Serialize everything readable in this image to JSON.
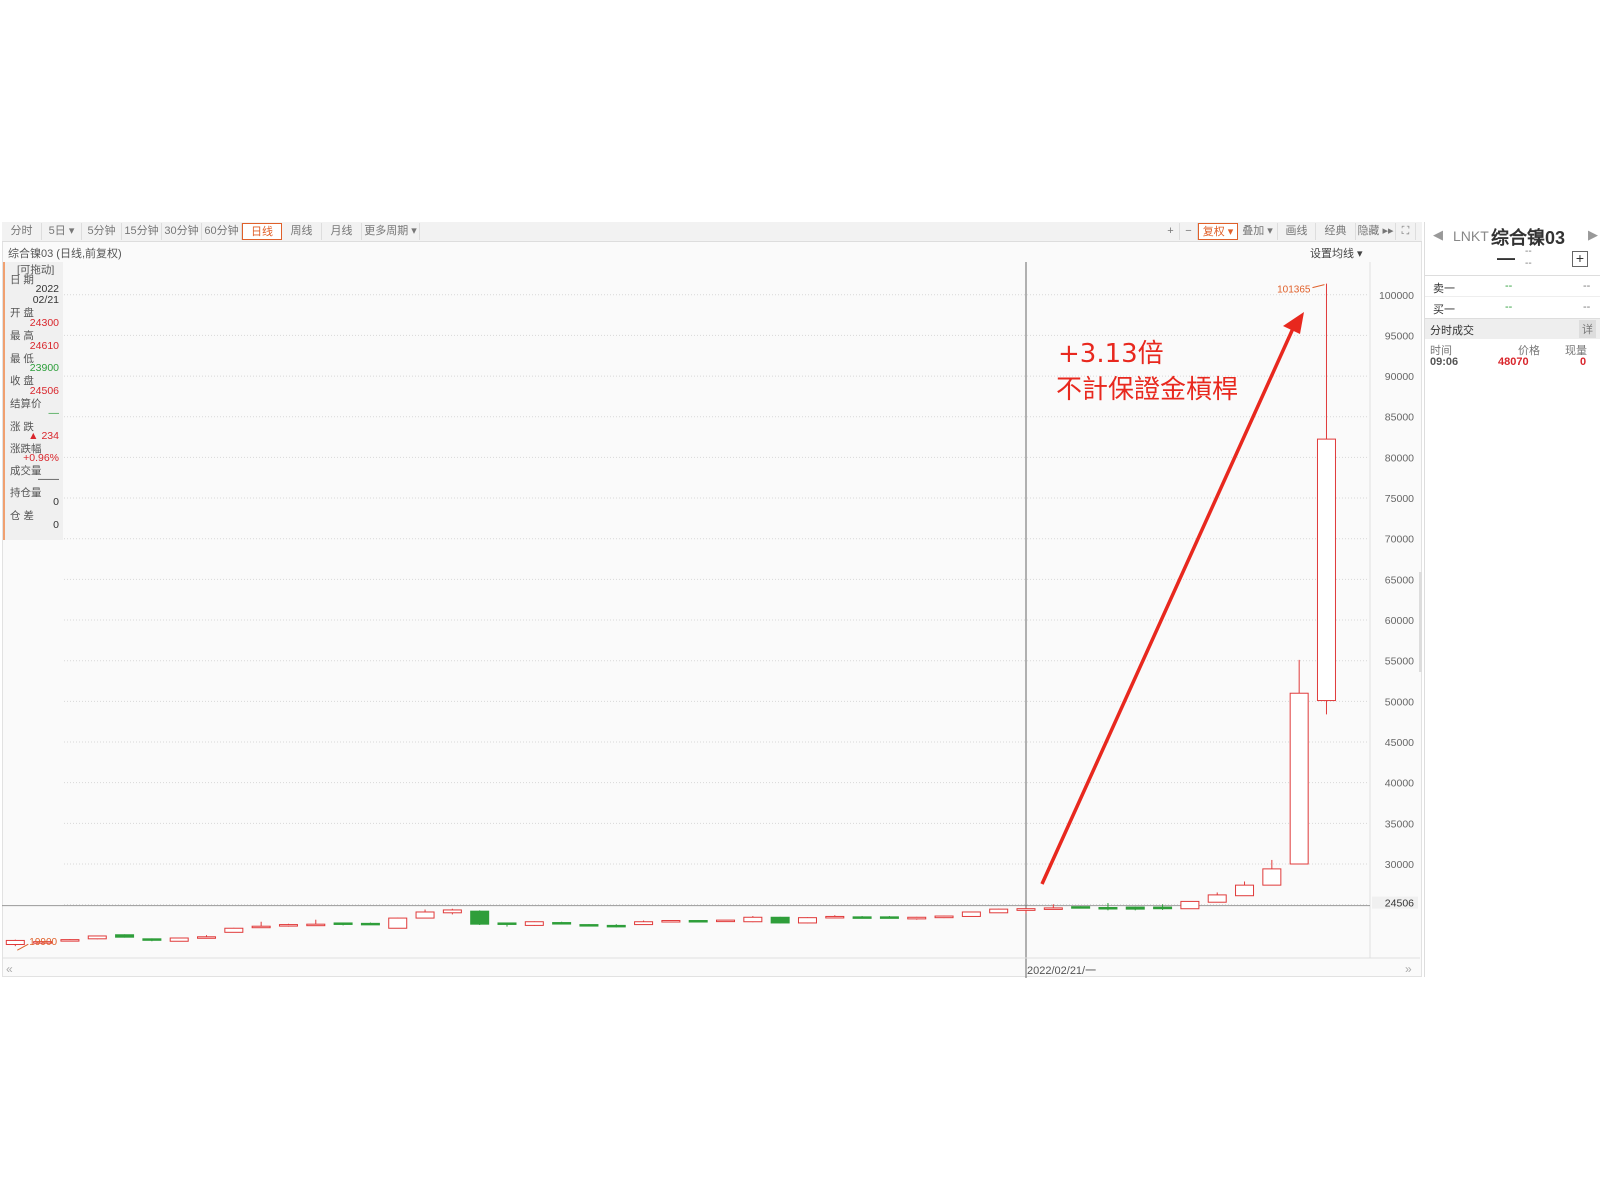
{
  "toolbar": {
    "periods": [
      "分时",
      "5日 ▾",
      "5分钟",
      "15分钟",
      "30分钟",
      "60分钟",
      "日线",
      "周线",
      "月线",
      "更多周期 ▾"
    ],
    "active_period": "日线",
    "tools": [
      "+",
      "−",
      "复权 ▾",
      "叠加 ▾",
      "画线",
      "经典",
      "隐藏 ▸▸"
    ],
    "active_tool": "复权 ▾",
    "fullscreen_icon": "expand-icon"
  },
  "chart_header": {
    "subtitle": "综合镍03 (日线,前复权)",
    "ma_setting": "设置均线 ▾"
  },
  "info_panel": {
    "drag_hint": "[可拖动]",
    "date_label": "日 期",
    "date_year": "2022",
    "date_md": "02/21",
    "open_label": "开 盘",
    "open": "24300",
    "high_label": "最 高",
    "high": "24610",
    "low_label": "最 低",
    "low": "23900",
    "close_label": "收 盘",
    "close": "24506",
    "settle_label": "结算价",
    "settle": "—",
    "change_label": "涨 跌",
    "change": "▲ 234",
    "pct_label": "涨跌幅",
    "pct": "+0.96%",
    "volume_label": "成交量",
    "volume": "——",
    "oi_label": "持仓量",
    "oi": "0",
    "oi_diff_label": "仓 差",
    "oi_diff": "0"
  },
  "annotation": {
    "line1": "+3.13倍",
    "line2": "不計保證金槓桿",
    "color": "#e8281e"
  },
  "crosshair_date": "2022/02/21/一",
  "right_panel": {
    "code": "LNKT",
    "name": "综合镍03",
    "price": "—",
    "chg1": "--",
    "chg2": "--",
    "sell1_label": "卖一",
    "sell1_price": "--",
    "sell1_vol": "--",
    "buy1_label": "买一",
    "buy1_price": "--",
    "buy1_vol": "--",
    "ticks_title": "分时成交",
    "detail_btn": "详",
    "cols": [
      "时间",
      "价格",
      "现量"
    ],
    "rows": [
      {
        "time": "09:06",
        "price": "48070",
        "vol": "0"
      }
    ]
  },
  "chart_data": {
    "type": "candlestick",
    "ylim": [
      17000,
      104000
    ],
    "yticks": [
      25000,
      30000,
      35000,
      40000,
      45000,
      50000,
      55000,
      60000,
      65000,
      70000,
      75000,
      80000,
      85000,
      90000,
      95000,
      100000
    ],
    "last_price_label": "24506",
    "max_label": "101365",
    "min_label": "19900",
    "colors": {
      "up": "#e03a3a",
      "down": "#2f9e3a"
    },
    "candles": [
      [
        20100,
        20700,
        19900,
        20600
      ],
      [
        20400,
        20500,
        20300,
        20450
      ],
      [
        20650,
        20750,
        20600,
        20700
      ],
      [
        20800,
        21200,
        20750,
        21150
      ],
      [
        21300,
        21350,
        20950,
        21000
      ],
      [
        20800,
        20850,
        20500,
        20650
      ],
      [
        20500,
        20950,
        20500,
        20900
      ],
      [
        21000,
        21250,
        20950,
        21050
      ],
      [
        21600,
        22150,
        21600,
        22100
      ],
      [
        22250,
        22900,
        22150,
        22350
      ],
      [
        22400,
        22650,
        22300,
        22550
      ],
      [
        22550,
        23150,
        22450,
        22600
      ],
      [
        22750,
        22800,
        22450,
        22700
      ],
      [
        22700,
        22800,
        22550,
        22650
      ],
      [
        22100,
        23400,
        22100,
        23350
      ],
      [
        23350,
        24400,
        23300,
        24100
      ],
      [
        24000,
        24500,
        23800,
        24350
      ],
      [
        24200,
        24300,
        22500,
        22600
      ],
      [
        22750,
        22800,
        22300,
        22700
      ],
      [
        22450,
        22950,
        22400,
        22900
      ],
      [
        22800,
        22900,
        22650,
        22700
      ],
      [
        22550,
        22600,
        22400,
        22400
      ],
      [
        22450,
        22600,
        22200,
        22400
      ],
      [
        22550,
        23050,
        22500,
        22900
      ],
      [
        23000,
        23050,
        22950,
        23050
      ],
      [
        23050,
        23100,
        22950,
        23000
      ],
      [
        23050,
        23100,
        23000,
        23100
      ],
      [
        22900,
        23600,
        22850,
        23450
      ],
      [
        23450,
        23500,
        22700,
        22750
      ],
      [
        22750,
        23450,
        22700,
        23400
      ],
      [
        23400,
        23700,
        23350,
        23550
      ],
      [
        23500,
        23600,
        23300,
        23450
      ],
      [
        23500,
        23600,
        23300,
        23450
      ],
      [
        23250,
        23500,
        23150,
        23450
      ],
      [
        23400,
        23650,
        23350,
        23600
      ],
      [
        23550,
        24150,
        23550,
        24100
      ],
      [
        24000,
        24500,
        24000,
        24450
      ],
      [
        24300,
        24610,
        23900,
        24506
      ],
      [
        24550,
        25050,
        24500,
        24600
      ],
      [
        24750,
        24800,
        24550,
        24700
      ],
      [
        24650,
        25200,
        24300,
        24500
      ],
      [
        24700,
        24750,
        24300,
        24450
      ],
      [
        24700,
        25050,
        24350,
        24500
      ],
      [
        24500,
        25450,
        24500,
        25400
      ],
      [
        25300,
        26500,
        25300,
        26200
      ],
      [
        26100,
        27850,
        26100,
        27400
      ],
      [
        27400,
        30500,
        27400,
        29400
      ],
      [
        30000,
        55100,
        30000,
        51000
      ],
      [
        50100,
        101365,
        48400,
        82250
      ]
    ],
    "crosshair_index": 37,
    "grid": true
  }
}
